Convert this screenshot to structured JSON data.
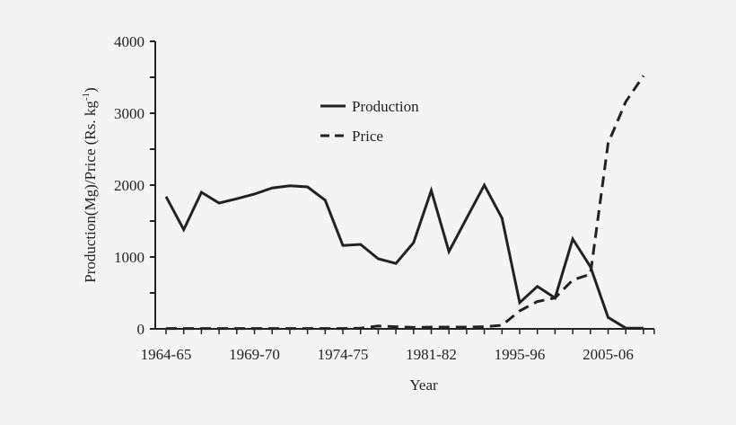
{
  "chart_data": {
    "type": "line",
    "xlabel": "Year",
    "ylabel": "Production(Mg)/Price (Rs. kg",
    "ylabel_sup": "-1",
    "ylabel_end": ")",
    "ylim": [
      0,
      4000
    ],
    "yticks": [
      0,
      1000,
      2000,
      3000,
      4000
    ],
    "x_tick_labels": [
      {
        "index": 0,
        "label": "1964-65"
      },
      {
        "index": 5,
        "label": "1969-70"
      },
      {
        "index": 10,
        "label": "1974-75"
      },
      {
        "index": 15,
        "label": "1981-82"
      },
      {
        "index": 20,
        "label": "1995-96"
      },
      {
        "index": 25,
        "label": "2005-06"
      }
    ],
    "n_points": 28,
    "grid": false,
    "legend_position": "top-center",
    "series": [
      {
        "name": "Production",
        "style": "solid",
        "color": "#222222",
        "values": [
          1840,
          1380,
          1900,
          1750,
          1810,
          1875,
          1960,
          1990,
          1975,
          1790,
          1160,
          1175,
          975,
          910,
          1200,
          1925,
          1075,
          1540,
          2000,
          1540,
          365,
          590,
          430,
          1250,
          865,
          160,
          10,
          10
        ]
      },
      {
        "name": "Price",
        "style": "dashed",
        "color": "#222222",
        "values": [
          5,
          5,
          5,
          5,
          5,
          5,
          5,
          5,
          5,
          5,
          5,
          10,
          40,
          30,
          20,
          25,
          25,
          25,
          30,
          50,
          250,
          380,
          430,
          680,
          760,
          2580,
          3160,
          3520
        ]
      }
    ]
  }
}
